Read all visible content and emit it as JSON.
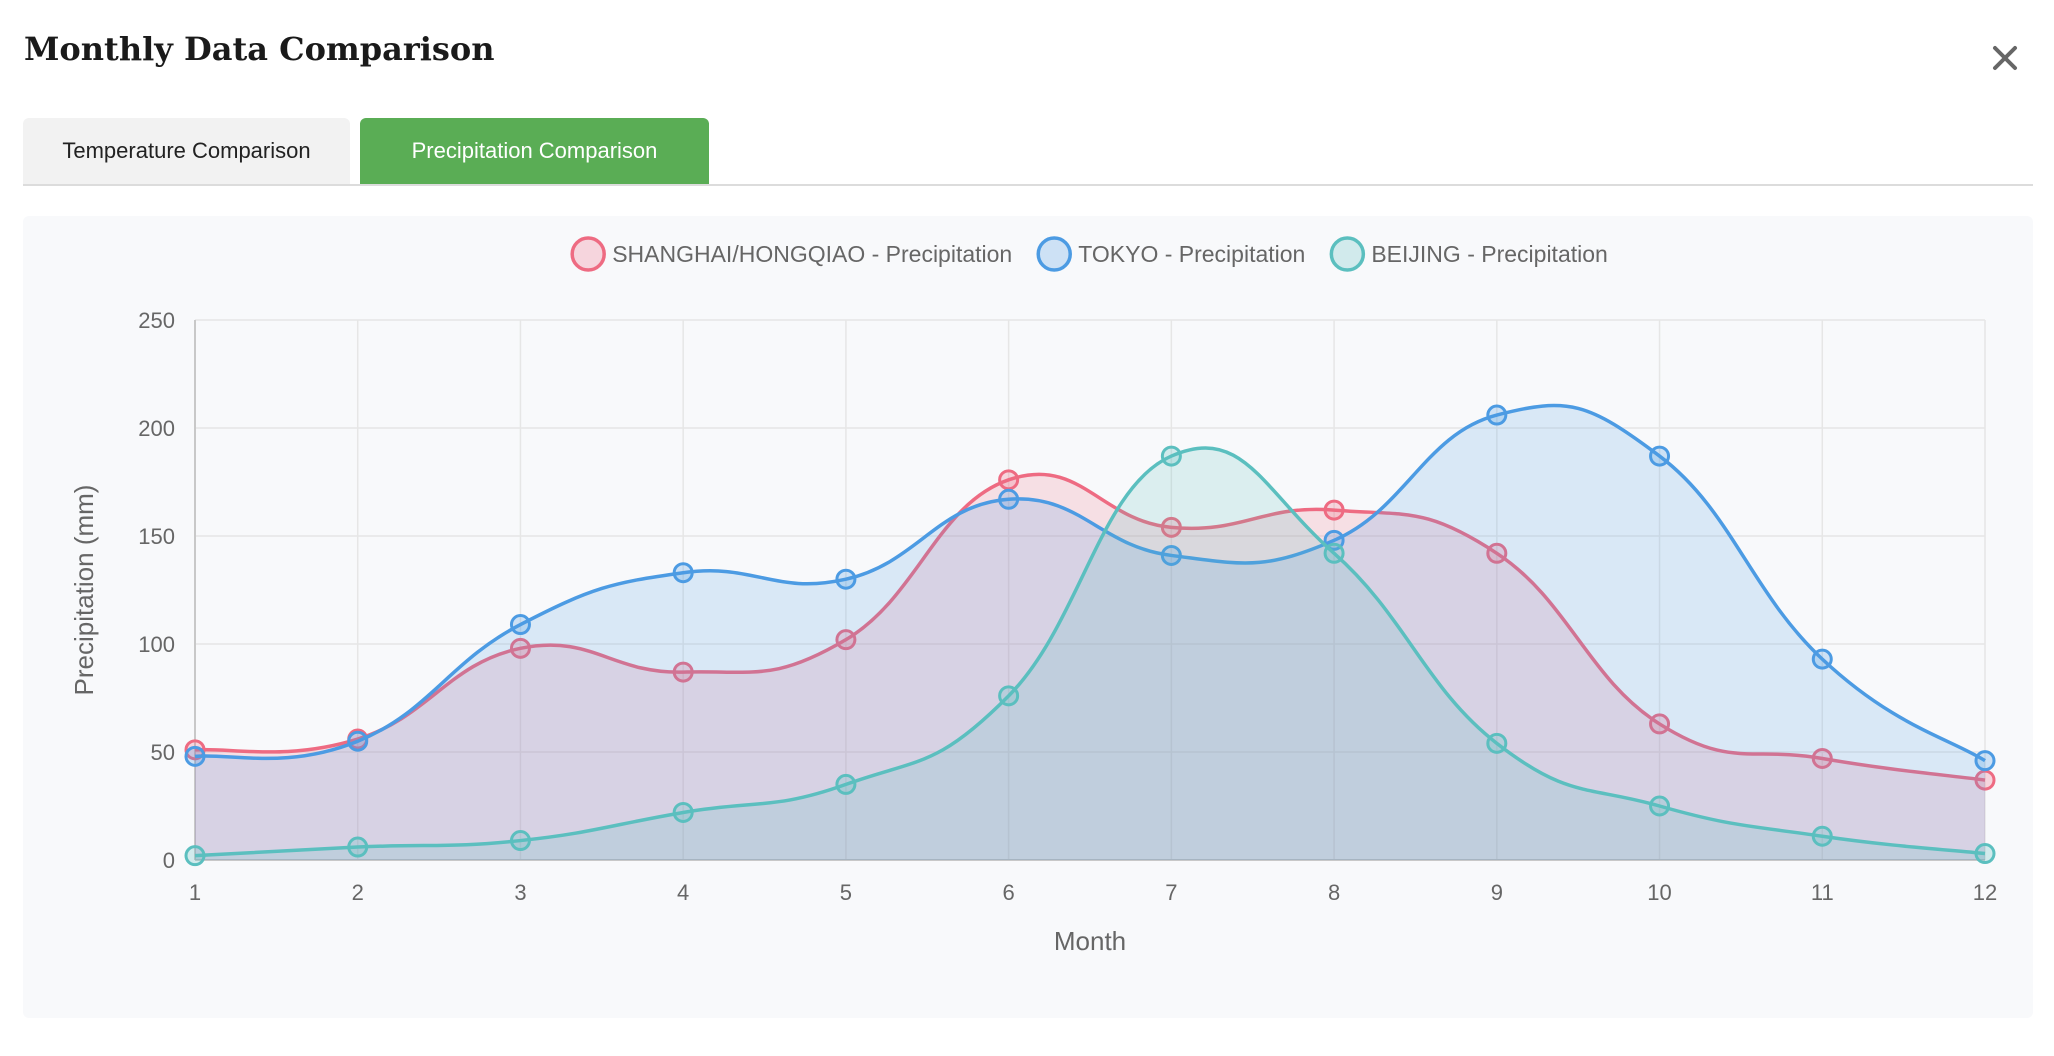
{
  "modal": {
    "title": "Monthly Data Comparison"
  },
  "tabs": [
    {
      "label": "Temperature Comparison",
      "active": false
    },
    {
      "label": "Precipitation Comparison",
      "active": true
    }
  ],
  "chart_data": {
    "type": "line",
    "x": [
      1,
      2,
      3,
      4,
      5,
      6,
      7,
      8,
      9,
      10,
      11,
      12
    ],
    "xlabel": "Month",
    "ylabel": "Precipitation (mm)",
    "ylim": [
      0,
      250
    ],
    "yticks": [
      0,
      50,
      100,
      150,
      200,
      250
    ],
    "grid": true,
    "legend_position": "top",
    "fill": true,
    "smooth": true,
    "series": [
      {
        "name": "SHANGHAI/HONGQIAO - Precipitation",
        "color": "#ee6b82",
        "values": [
          51,
          56,
          98,
          87,
          102,
          176,
          154,
          162,
          142,
          63,
          47,
          37
        ]
      },
      {
        "name": "TOKYO - Precipitation",
        "color": "#4c9be3",
        "values": [
          48,
          55,
          109,
          133,
          130,
          167,
          141,
          148,
          206,
          187,
          93,
          46
        ]
      },
      {
        "name": "BEIJING - Precipitation",
        "color": "#5bbfbf",
        "values": [
          2,
          6,
          9,
          22,
          35,
          76,
          187,
          142,
          54,
          25,
          11,
          3
        ]
      }
    ]
  }
}
